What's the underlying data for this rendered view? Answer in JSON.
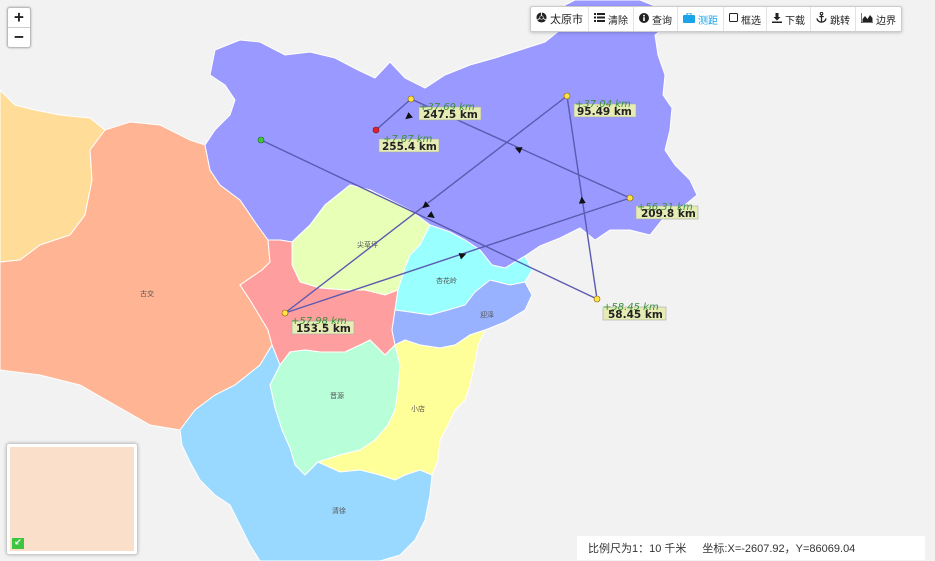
{
  "zoom": {
    "in_label": "+",
    "out_label": "−"
  },
  "toolbar": {
    "city": "太原市",
    "clear": "清除",
    "query": "查询",
    "measure": "测距",
    "box_select": "框选",
    "download": "下载",
    "jump": "跳转",
    "boundary": "边界"
  },
  "regions": {
    "gujiao": "古交",
    "jiancaoping": "尖草坪",
    "xinghualing": "杏花岭",
    "yingze": "迎泽",
    "jinyuan": "晋源",
    "xiaodian": "小店",
    "qingxu": "清徐"
  },
  "measure": {
    "p1": {
      "total": "255.4 km",
      "seg": "+7.87 km"
    },
    "p2": {
      "total": "247.5 km",
      "seg": "+37.69 km"
    },
    "p3": {
      "total": "209.8 km",
      "seg": "+56.31 km"
    },
    "p4": {
      "total": "153.5 km",
      "seg": "+57.98 km"
    },
    "p5": {
      "total": "95.49 km",
      "seg": "+37.04 km"
    },
    "p6": {
      "total": "58.45 km",
      "seg": "+58.45 km"
    }
  },
  "status": {
    "scale": "比例尺为1：10 千米",
    "coords": "坐标:X=-2607.92，Y=86069.04"
  },
  "colors": {
    "yangqu": "#9999ff",
    "gujiao": "#ffb593",
    "loufan": "#ffdd99",
    "jiancaoping": "#e8ffb8",
    "wanbailin": "#ff9e9e",
    "xinghualing": "#99ffff",
    "yingze": "#99b2ff",
    "jinyuan": "#b8ffd9",
    "xiaodian": "#ffff99",
    "qingxu": "#99d9ff",
    "measure_line": "#5a5ab0"
  }
}
